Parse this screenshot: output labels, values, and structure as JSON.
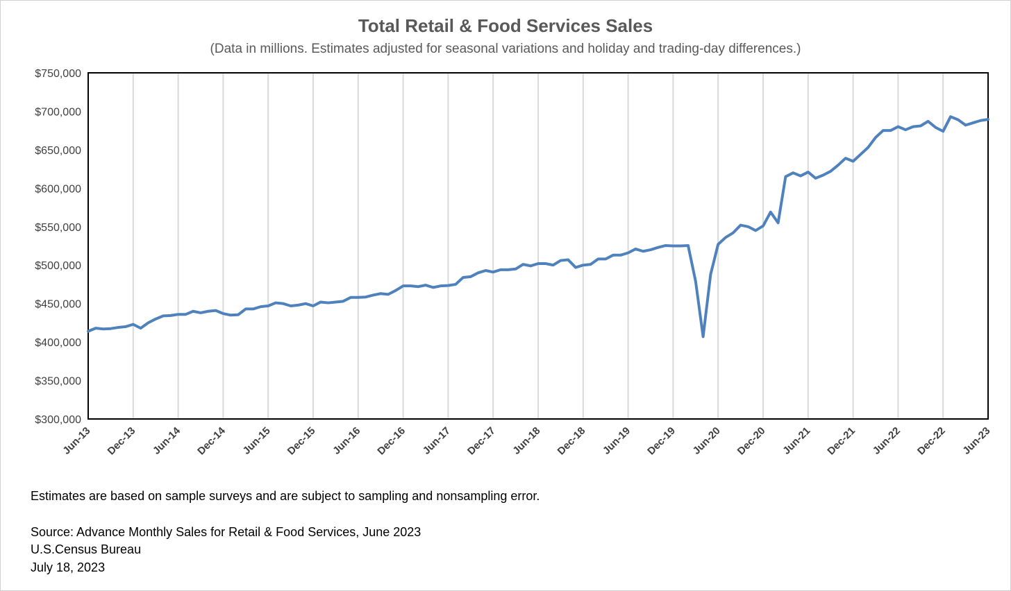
{
  "notes": {
    "estimates": "Estimates are based on sample surveys and are subject to sampling and nonsampling error.",
    "source": "Source: Advance Monthly Sales for Retail & Food Services, June 2023",
    "agency": "U.S.Census Bureau",
    "date": "July 18, 2023"
  },
  "chart_data": {
    "type": "line",
    "title": "Total Retail & Food Services Sales",
    "subtitle": "(Data in millions. Estimates adjusted for seasonal variations and holiday and trading-day differences.)",
    "ylim": [
      300000,
      750000
    ],
    "yticks": [
      300000,
      350000,
      400000,
      450000,
      500000,
      550000,
      600000,
      650000,
      700000,
      750000
    ],
    "ytick_labels": [
      "$300,000",
      "$350,000",
      "$400,000",
      "$450,000",
      "$500,000",
      "$550,000",
      "$600,000",
      "$650,000",
      "$700,000",
      "$750,000"
    ],
    "xtick_labels": [
      "Jun-13",
      "Dec-13",
      "Jun-14",
      "Dec-14",
      "Jun-15",
      "Dec-15",
      "Jun-16",
      "Dec-16",
      "Jun-17",
      "Dec-17",
      "Jun-18",
      "Dec-18",
      "Jun-19",
      "Dec-19",
      "Jun-20",
      "Dec-20",
      "Jun-21",
      "Dec-21",
      "Jun-22",
      "Dec-22",
      "Jun-23"
    ],
    "grid": "vertical",
    "line_color": "#4f81bd",
    "x_start": "Jun-13",
    "x_end": "Jun-23",
    "values": [
      414000,
      418000,
      417000,
      417500,
      419000,
      420000,
      423000,
      418000,
      425000,
      430000,
      434000,
      434500,
      436000,
      436000,
      440000,
      438000,
      440000,
      441000,
      437000,
      435000,
      435500,
      443000,
      443000,
      446000,
      447000,
      451000,
      450000,
      447000,
      448000,
      450000,
      447000,
      452000,
      451000,
      452000,
      453000,
      458000,
      458000,
      458500,
      461000,
      463000,
      462000,
      467000,
      473000,
      473000,
      472000,
      474000,
      471000,
      473000,
      473500,
      475000,
      484000,
      485000,
      490000,
      493000,
      491000,
      494000,
      494000,
      495000,
      501000,
      499000,
      502000,
      502000,
      500000,
      506000,
      507000,
      497000,
      500000,
      501000,
      508000,
      508000,
      513000,
      513000,
      516000,
      521000,
      518000,
      520000,
      523000,
      525500,
      525000,
      525000,
      525500,
      479000,
      407000,
      488000,
      527000,
      536000,
      542000,
      552000,
      550000,
      545000,
      551000,
      569000,
      555000,
      615000,
      620000,
      616000,
      621000,
      613000,
      617000,
      622000,
      630000,
      639000,
      635000,
      644000,
      653000,
      666000,
      675000,
      675000,
      680000,
      676000,
      680000,
      681000,
      687000,
      679000,
      674000,
      693000,
      689000,
      682000,
      685000,
      688000,
      689500
    ]
  }
}
